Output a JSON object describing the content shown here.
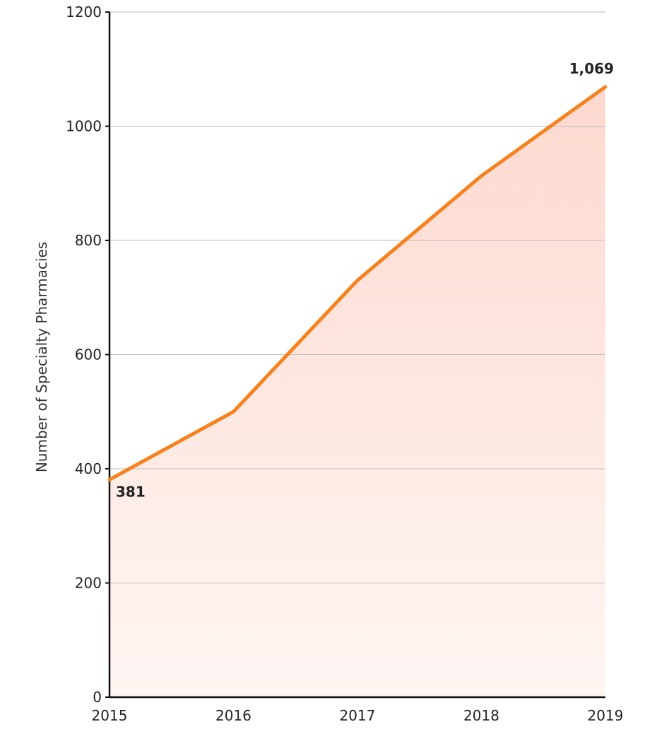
{
  "chart_data": {
    "type": "area",
    "title": "",
    "xlabel": "",
    "ylabel": "Number of Specialty Pharmacies",
    "x": [
      "2015",
      "2016",
      "2017",
      "2018",
      "2019"
    ],
    "series": [
      {
        "name": "",
        "values": [
          381,
          500,
          730,
          913,
          1069
        ]
      }
    ],
    "ylim": [
      0,
      1200
    ],
    "yticks": [
      0,
      200,
      400,
      600,
      800,
      1000,
      1200
    ],
    "grid": "horizontal",
    "legend": "none",
    "annotations": [
      {
        "index": 0,
        "text": "381"
      },
      {
        "index": 4,
        "text": "1,069"
      }
    ],
    "colors": {
      "line": "#F5821F",
      "fill_top": "#FDD9CF",
      "fill_bottom": "#FFF6F3",
      "grid": "#BDBDBD",
      "axis": "#111111"
    }
  }
}
